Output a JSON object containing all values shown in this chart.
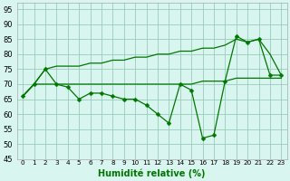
{
  "x": [
    0,
    1,
    2,
    3,
    4,
    5,
    6,
    7,
    8,
    9,
    10,
    11,
    12,
    13,
    14,
    15,
    16,
    17,
    18,
    19,
    20,
    21,
    22,
    23
  ],
  "line1": [
    66,
    70,
    75,
    70,
    69,
    65,
    67,
    67,
    66,
    65,
    65,
    63,
    60,
    57,
    70,
    68,
    52,
    53,
    71,
    86,
    84,
    85,
    73,
    73
  ],
  "line2": [
    66,
    70,
    75,
    76,
    76,
    76,
    77,
    77,
    78,
    78,
    79,
    79,
    80,
    80,
    81,
    81,
    82,
    82,
    83,
    85,
    84,
    85,
    80,
    73
  ],
  "line3": [
    66,
    70,
    70,
    70,
    70,
    70,
    70,
    70,
    70,
    70,
    70,
    70,
    70,
    70,
    70,
    70,
    71,
    71,
    71,
    72,
    72,
    72,
    72,
    72
  ],
  "bg_color": "#d8f5ef",
  "grid_color": "#99ccbb",
  "line_color": "#007700",
  "markersize": 2.5,
  "xlabel": "Humidité relative (%)",
  "ylim": [
    45,
    97
  ],
  "yticks": [
    45,
    50,
    55,
    60,
    65,
    70,
    75,
    80,
    85,
    90,
    95
  ],
  "xlim": [
    -0.5,
    23.5
  ],
  "figsize": [
    3.2,
    2.0
  ],
  "dpi": 100
}
